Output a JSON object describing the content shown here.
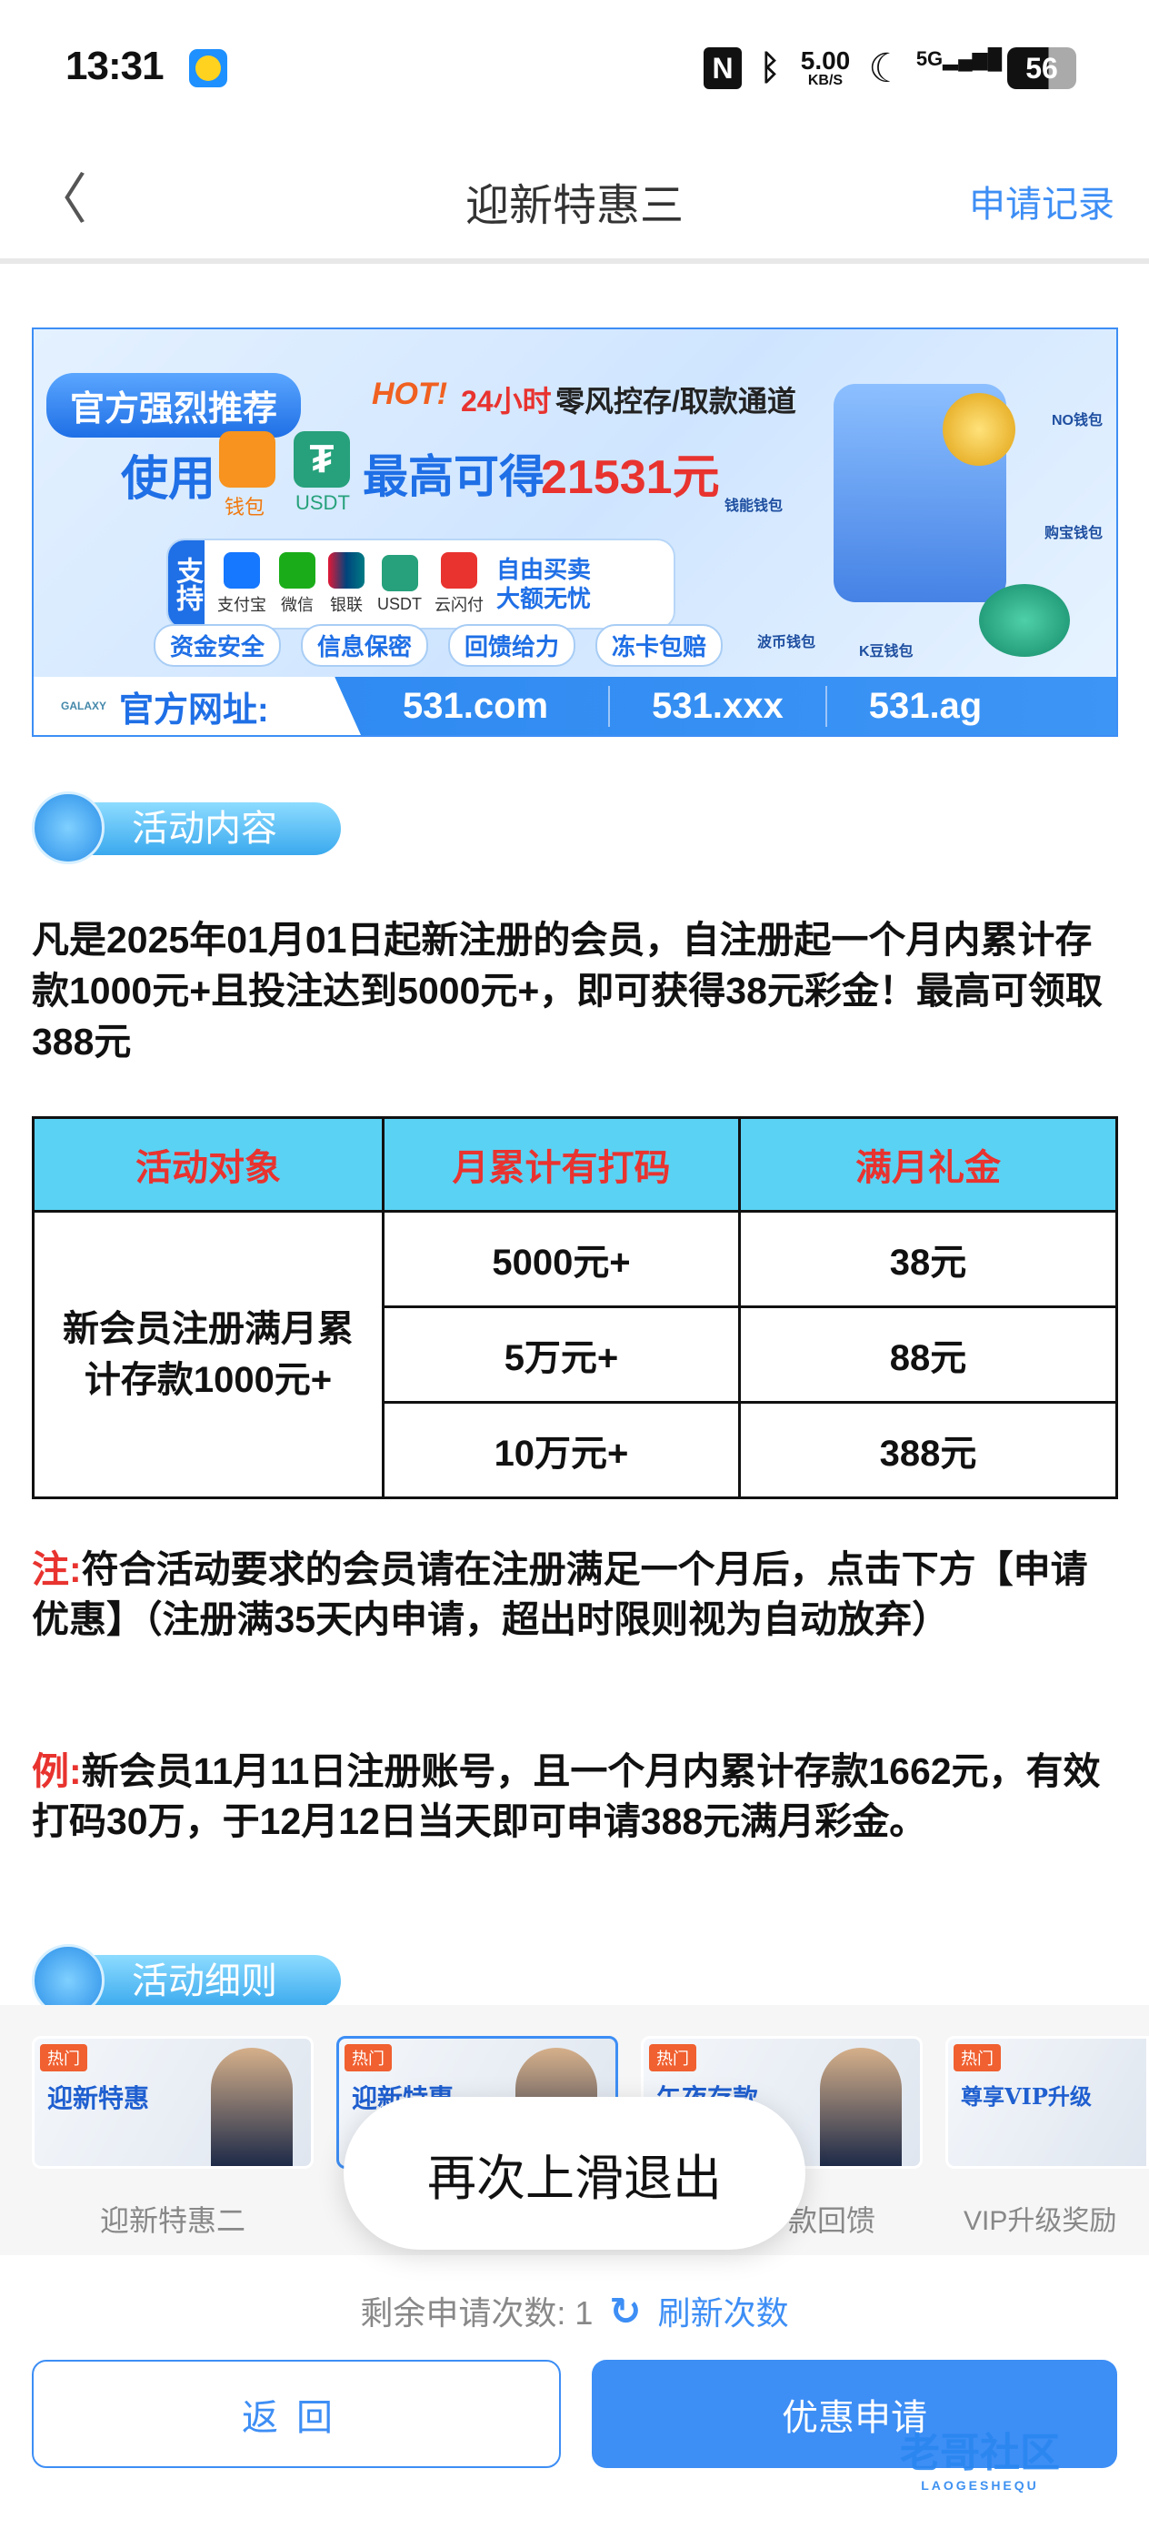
{
  "status": {
    "time": "13:31",
    "net_speed": "5.00",
    "net_unit": "KB/S",
    "network": "5G",
    "battery": "56"
  },
  "header": {
    "title": "迎新特惠三",
    "right_link": "申请记录"
  },
  "banner": {
    "recommend": "官方强烈推荐",
    "hot": "HOT!",
    "hours": "24小时",
    "channel": "零风控存/取款通道",
    "use": "使用",
    "wallet": "钱包",
    "usdt": "USDT",
    "max_gain": "最高可得",
    "amount": "21531元",
    "support": "支持",
    "methods": [
      "支付宝",
      "微信",
      "银联",
      "USDT",
      "云闪付"
    ],
    "free_trade": "自由买卖",
    "large": "大额无忧",
    "tags": [
      "资金安全",
      "信息保密",
      "回馈给力",
      "冻卡包赔"
    ],
    "wallets": [
      "NO钱包",
      "钱能钱包",
      "购宝钱包",
      "波币钱包",
      "K豆钱包"
    ],
    "url_label": "官方网址:",
    "urls": [
      "531.com",
      "531.xxx",
      "531.ag"
    ],
    "logo_text": "GALAXY"
  },
  "section1": {
    "title": "活动内容"
  },
  "intro": "凡是2025年01月01日起新注册的会员，自注册起一个月内累计存款1000元+且投注达到5000元+，即可获得38元彩金！最高可领取388元",
  "table": {
    "headers": [
      "活动对象",
      "月累计有打码",
      "满月礼金"
    ],
    "target": "新会员注册满月累计存款1000元+",
    "rows": [
      [
        "5000元+",
        "38元"
      ],
      [
        "5万元+",
        "88元"
      ],
      [
        "10万元+",
        "388元"
      ]
    ]
  },
  "note": {
    "label": "注:",
    "text": "符合活动要求的会员请在注册满足一个月后，点击下方【申请优惠】（注册满35天内申请，超出时限则视为自动放弃）"
  },
  "example": {
    "label": "例:",
    "text": "新会员11月11日注册账号，且一个月内累计存款1662元，有效打码30万，于12月12日当天即可申请388元满月彩金。"
  },
  "section2": {
    "title": "活动细则"
  },
  "carousel": [
    {
      "hot": "热门",
      "title": "迎新特惠",
      "label": "迎新特惠二",
      "selected": false
    },
    {
      "hot": "热门",
      "title": "迎新特惠",
      "label": "",
      "selected": true
    },
    {
      "hot": "热门",
      "title": "午夜存款",
      "label": "款回馈",
      "selected": false
    },
    {
      "hot": "热门",
      "title": "尊享VIP升级",
      "label": "VIP升级奖励",
      "selected": false
    }
  ],
  "toast": "再次上滑退出",
  "remaining": {
    "label": "剩余申请次数:",
    "count": "1",
    "refresh": "刷新次数"
  },
  "buttons": {
    "back": "返回",
    "apply": "优惠申请"
  },
  "watermark": {
    "text": "老哥社区",
    "sub": "LAOGESHEQU"
  },
  "colors": {
    "accent": "#3d8ef5",
    "red": "#e8332f",
    "table_header": "#5ad2f4"
  }
}
